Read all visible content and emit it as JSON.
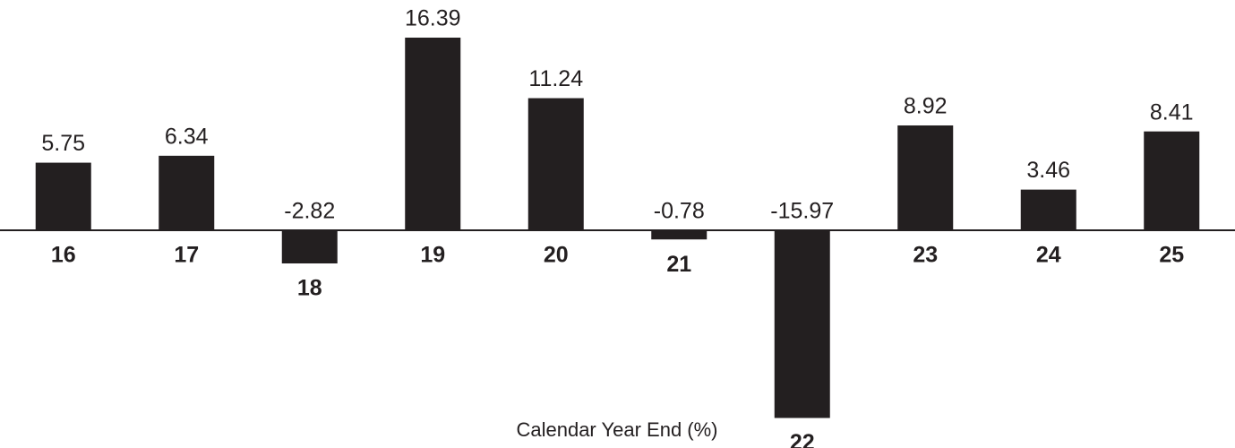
{
  "chart_data": {
    "type": "bar",
    "x_label": "Calendar Year End (%)",
    "categories": [
      "16",
      "17",
      "18",
      "19",
      "20",
      "21",
      "22",
      "23",
      "24",
      "25"
    ],
    "values": [
      5.75,
      6.34,
      -2.82,
      16.39,
      11.24,
      -0.78,
      -15.97,
      8.92,
      3.46,
      8.41
    ],
    "color": "#231f20"
  }
}
